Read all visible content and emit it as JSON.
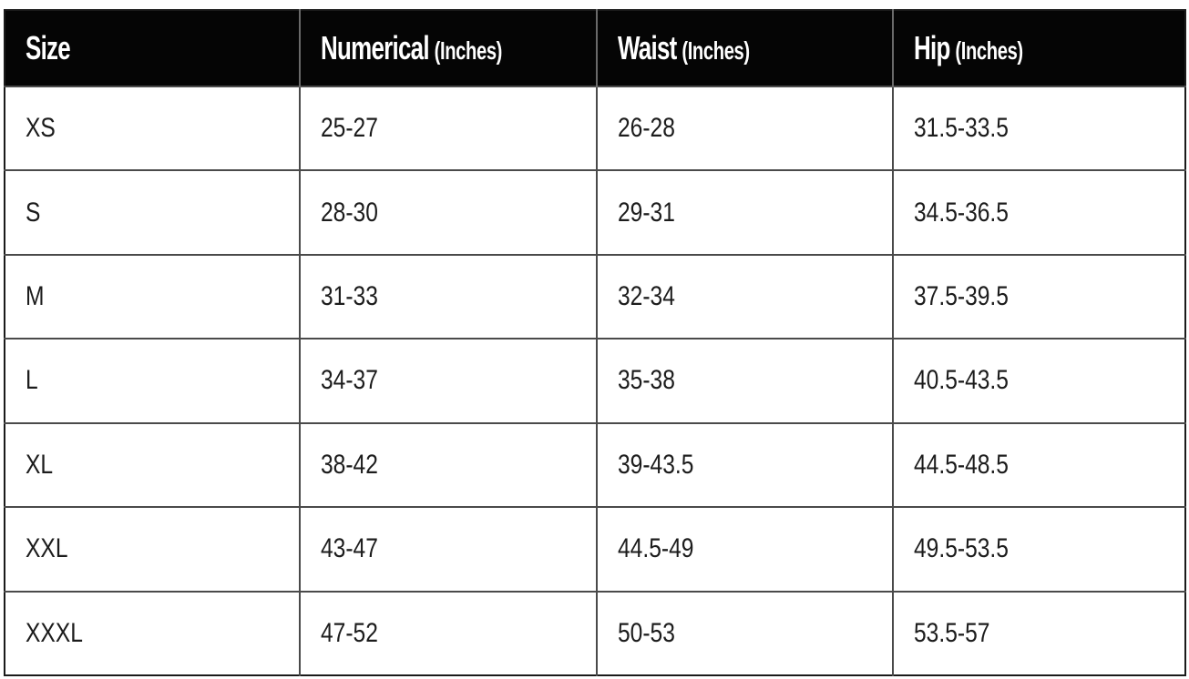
{
  "table": {
    "headers": [
      {
        "main": "Size",
        "unit": ""
      },
      {
        "main": "Numerical",
        "unit": "(Inches)"
      },
      {
        "main": "Waist",
        "unit": "(Inches)"
      },
      {
        "main": "Hip",
        "unit": "(Inches)"
      }
    ],
    "rows": [
      [
        "XS",
        "25-27",
        "26-28",
        "31.5-33.5"
      ],
      [
        "S",
        "28-30",
        "29-31",
        "34.5-36.5"
      ],
      [
        "M",
        "31-33",
        "32-34",
        "37.5-39.5"
      ],
      [
        "L",
        "34-37",
        "35-38",
        "40.5-43.5"
      ],
      [
        "XL",
        "38-42",
        "39-43.5",
        "44.5-48.5"
      ],
      [
        "XXL",
        "43-47",
        "44.5-49",
        "49.5-53.5"
      ],
      [
        "XXXL",
        "47-52",
        "50-53",
        "53.5-57"
      ]
    ],
    "colors": {
      "header_background": "#050505",
      "header_text": "#ffffff",
      "grid_line": "#4a4a4a",
      "body_text": "#1c1c1c"
    }
  }
}
